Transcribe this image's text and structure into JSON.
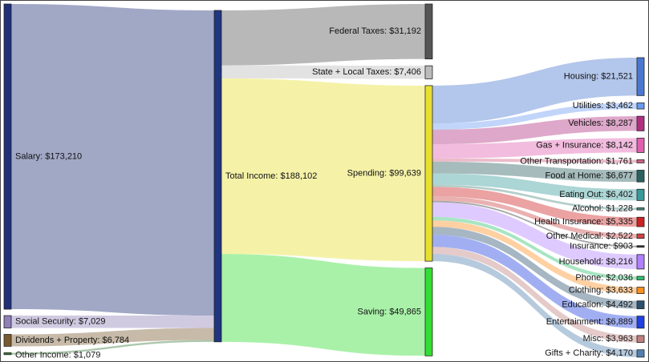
{
  "chart_data": {
    "type": "sankey",
    "nodes": [
      {
        "label": "Salary: $173,210",
        "value": 173210,
        "color": "#1f2f78"
      },
      {
        "label": "Social Security: $7,029",
        "value": 7029,
        "color": "#9080b8"
      },
      {
        "label": "Dividends + Property: $6,784",
        "value": 6784,
        "color": "#7a5a30"
      },
      {
        "label": "Other Income: $1,079",
        "value": 1079,
        "color": "#3a7a3a"
      },
      {
        "label": "Total Income: $188,102",
        "value": 188102,
        "color": "#1f3580"
      },
      {
        "label": "Federal Taxes: $31,192",
        "value": 31192,
        "color": "#555555"
      },
      {
        "label": "State + Local Taxes: $7,406",
        "value": 7406,
        "color": "#bbbbbb"
      },
      {
        "label": "Spending: $99,639",
        "value": 99639,
        "color": "#e8e030"
      },
      {
        "label": "Saving: $49,865",
        "value": 49865,
        "color": "#33dd33"
      },
      {
        "label": "Housing: $21,521",
        "value": 21521,
        "color": "#4a78d0"
      },
      {
        "label": "Utilities: $3,462",
        "value": 3462,
        "color": "#6a9af0"
      },
      {
        "label": "Vehicles: $8,287",
        "value": 8287,
        "color": "#b03080"
      },
      {
        "label": "Gas + Insurance: $8,142",
        "value": 8142,
        "color": "#e060b0"
      },
      {
        "label": "Other Transportation: $1,761",
        "value": 1761,
        "color": "#d06080"
      },
      {
        "label": "Food at Home: $6,677",
        "value": 6677,
        "color": "#2a6060"
      },
      {
        "label": "Eating Out: $6,402",
        "value": 6402,
        "color": "#3a9a9a"
      },
      {
        "label": "Alcohol: $1,228",
        "value": 1228,
        "color": "#4a8a80"
      },
      {
        "label": "Health Insurance: $5,335",
        "value": 5335,
        "color": "#cc2222"
      },
      {
        "label": "Other Medical: $2,522",
        "value": 2522,
        "color": "#cc4444"
      },
      {
        "label": "Insurance: $903",
        "value": 903,
        "color": "#333333"
      },
      {
        "label": "Household: $8,216",
        "value": 8216,
        "color": "#b080ff"
      },
      {
        "label": "Phone: $2,036",
        "value": 2036,
        "color": "#30c070"
      },
      {
        "label": "Clothing: $3,633",
        "value": 3633,
        "color": "#ff9020"
      },
      {
        "label": "Education: $4,492",
        "value": 4492,
        "color": "#2a5070"
      },
      {
        "label": "Entertainment: $6,889",
        "value": 6889,
        "color": "#2040e0"
      },
      {
        "label": "Misc: $3,963",
        "value": 3963,
        "color": "#c08080"
      },
      {
        "label": "Gifts + Charity: $4,170",
        "value": 4170,
        "color": "#5080b0"
      }
    ],
    "links": [
      {
        "source": 0,
        "target": 4
      },
      {
        "source": 1,
        "target": 4
      },
      {
        "source": 2,
        "target": 4
      },
      {
        "source": 3,
        "target": 4
      },
      {
        "source": 4,
        "target": 5
      },
      {
        "source": 4,
        "target": 6
      },
      {
        "source": 4,
        "target": 7
      },
      {
        "source": 4,
        "target": 8
      },
      {
        "source": 7,
        "target": 9
      },
      {
        "source": 7,
        "target": 10
      },
      {
        "source": 7,
        "target": 11
      },
      {
        "source": 7,
        "target": 12
      },
      {
        "source": 7,
        "target": 13
      },
      {
        "source": 7,
        "target": 14
      },
      {
        "source": 7,
        "target": 15
      },
      {
        "source": 7,
        "target": 16
      },
      {
        "source": 7,
        "target": 17
      },
      {
        "source": 7,
        "target": 18
      },
      {
        "source": 7,
        "target": 19
      },
      {
        "source": 7,
        "target": 20
      },
      {
        "source": 7,
        "target": 21
      },
      {
        "source": 7,
        "target": 22
      },
      {
        "source": 7,
        "target": 23
      },
      {
        "source": 7,
        "target": 24
      },
      {
        "source": 7,
        "target": 25
      },
      {
        "source": 7,
        "target": 26
      }
    ]
  }
}
